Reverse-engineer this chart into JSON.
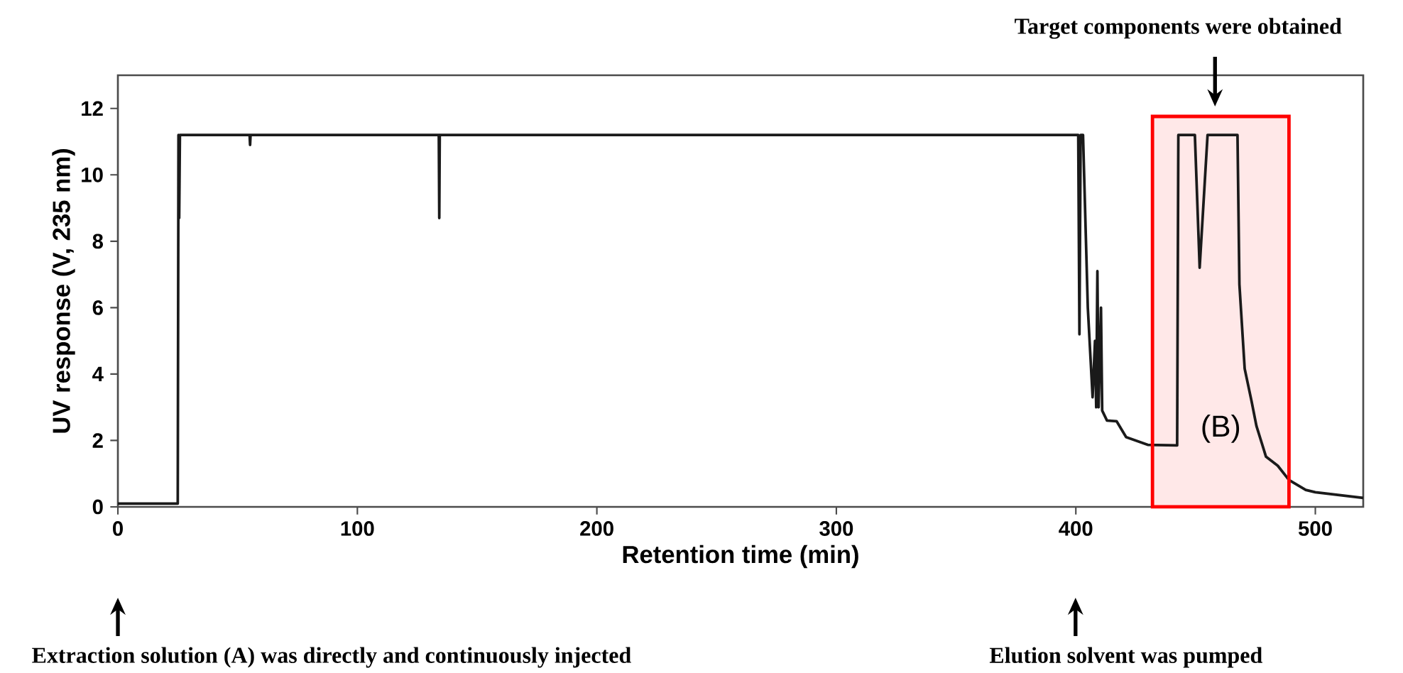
{
  "chart_data": {
    "type": "line",
    "xlabel": "Retention time (min)",
    "ylabel": "UV response (V, 235 nm)",
    "xlim": [
      0,
      520
    ],
    "xticks": [
      0,
      100,
      200,
      300,
      400,
      500
    ],
    "ylim": [
      0,
      13
    ],
    "yticks": [
      0,
      2,
      4,
      6,
      8,
      10,
      12
    ],
    "grid": false,
    "marker": "none",
    "line_style": "solid",
    "series": [
      {
        "color": "#1a1a1a",
        "x": [
          0,
          25,
          25.3,
          25.6,
          25.9,
          55,
          55.2,
          55.4,
          134,
          134.2,
          134.4,
          401,
          401.5,
          402,
          403,
          405,
          407,
          408,
          408.5,
          409,
          409.5,
          410.5,
          411,
          413,
          417,
          421,
          430,
          442.3,
          442.8,
          443.8,
          449.7,
          451.7,
          455,
          467.5,
          468.3,
          470.5,
          473.4,
          475.4,
          479.4,
          484.3,
          489,
          496,
          500,
          520
        ],
        "values": [
          0.1,
          0.1,
          11.2,
          8.7,
          11.2,
          11.2,
          10.9,
          11.2,
          11.2,
          8.7,
          11.2,
          11.2,
          5.2,
          11.2,
          11.2,
          6.0,
          3.3,
          5.0,
          3.0,
          7.1,
          3.0,
          6.0,
          2.9,
          2.6,
          2.58,
          2.1,
          1.87,
          1.85,
          11.2,
          11.2,
          11.2,
          7.2,
          11.2,
          11.2,
          6.7,
          4.16,
          3.17,
          2.44,
          1.51,
          1.24,
          0.81,
          0.51,
          0.44,
          0.27
        ]
      }
    ],
    "bands": [
      {
        "axis": "x",
        "from": 432,
        "to": 489,
        "label": "(B)"
      }
    ],
    "annotations": [
      "Target components were obtained",
      "Extraction solution (A) was directly and continuously injected",
      "Elution solvent was pumped"
    ]
  }
}
